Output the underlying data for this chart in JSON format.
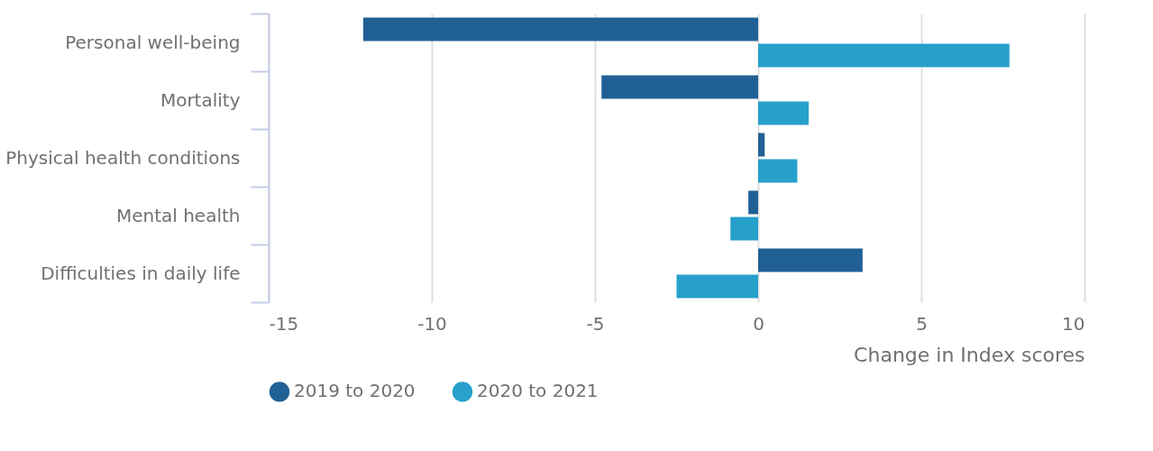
{
  "chart_data": {
    "type": "bar",
    "orientation": "horizontal",
    "xlabel": "Change in Index scores",
    "categories": [
      "Personal well-being",
      "Mortality",
      "Physical health conditions",
      "Mental health",
      "Difficulties in daily life"
    ],
    "series": [
      {
        "name": "2019 to 2020",
        "color": "#206095",
        "values": [
          -12.1,
          -4.8,
          0.2,
          -0.3,
          3.2
        ]
      },
      {
        "name": "2020 to 2021",
        "color": "#27a0cc",
        "values": [
          7.7,
          1.55,
          1.2,
          -0.85,
          -2.5
        ]
      }
    ],
    "xlim": [
      -15,
      10
    ],
    "xticks": [
      -15,
      -10,
      -5,
      0,
      5,
      10
    ],
    "grid": "x",
    "legend": "bottom"
  }
}
